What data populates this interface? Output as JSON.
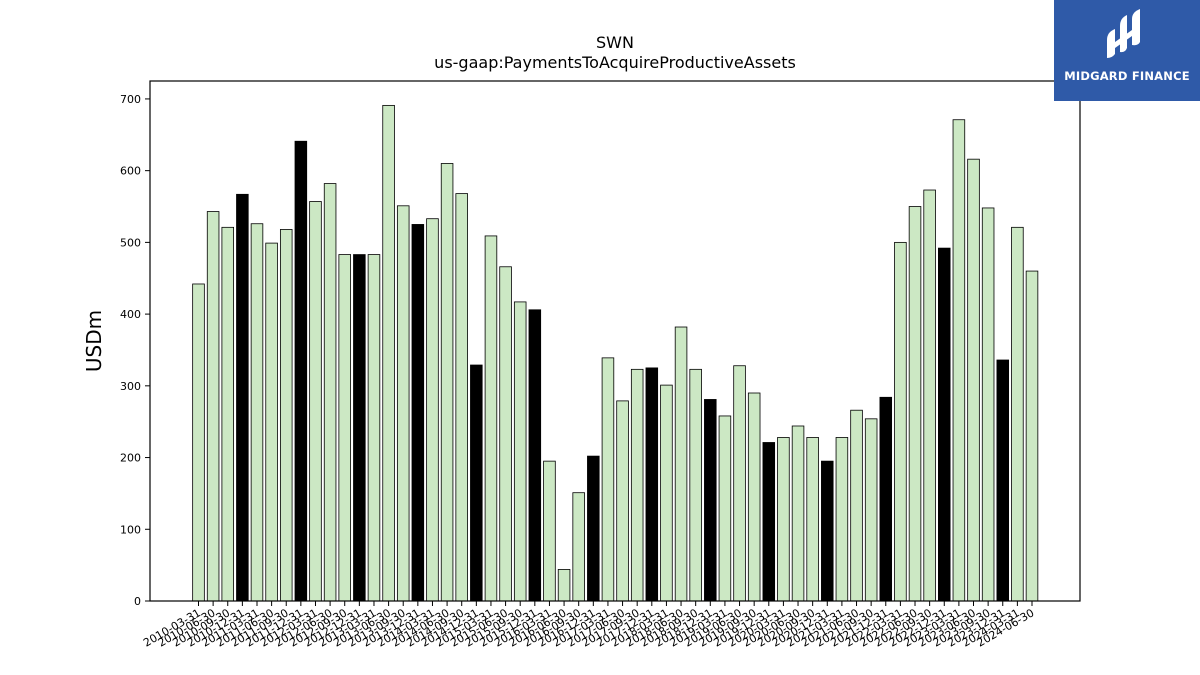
{
  "chart_data": {
    "type": "bar",
    "title": "SWN",
    "subtitle": "us-gaap:PaymentsToAcquireProductiveAssets",
    "xlabel": "",
    "ylabel": "USDm",
    "ylim": [
      0,
      725
    ],
    "yticks": [
      0,
      100,
      200,
      300,
      400,
      500,
      600,
      700
    ],
    "grid": false,
    "colors": {
      "default": "#cce8c4",
      "highlight": "#000000",
      "edge": "#000000"
    },
    "categories": [
      "2010-03-31",
      "2010-06-30",
      "2010-09-30",
      "2010-12-31",
      "2011-03-31",
      "2011-06-30",
      "2011-09-30",
      "2011-12-31",
      "2012-03-31",
      "2012-06-30",
      "2012-09-30",
      "2012-12-31",
      "2013-03-31",
      "2013-06-30",
      "2013-09-30",
      "2013-12-31",
      "2014-03-31",
      "2014-06-30",
      "2014-09-30",
      "2014-12-31",
      "2015-03-31",
      "2015-06-30",
      "2015-09-30",
      "2015-12-31",
      "2016-03-31",
      "2016-06-30",
      "2016-09-30",
      "2016-12-31",
      "2017-03-31",
      "2017-06-30",
      "2017-09-30",
      "2017-12-31",
      "2018-03-31",
      "2018-06-30",
      "2018-09-30",
      "2018-12-31",
      "2019-03-31",
      "2019-06-30",
      "2019-09-30",
      "2019-12-31",
      "2020-03-31",
      "2020-06-30",
      "2020-09-30",
      "2020-12-31",
      "2021-03-31",
      "2021-06-30",
      "2021-09-30",
      "2021-12-31",
      "2022-03-31",
      "2022-06-30",
      "2022-09-30",
      "2022-12-31",
      "2023-03-31",
      "2023-06-30",
      "2023-09-30",
      "2023-12-31",
      "2024-03-31",
      "2024-06-30"
    ],
    "values": [
      442,
      543,
      521,
      567,
      526,
      499,
      518,
      641,
      557,
      582,
      483,
      483,
      483,
      691,
      551,
      525,
      533,
      610,
      568,
      329,
      509,
      466,
      417,
      406,
      195,
      44,
      151,
      202,
      339,
      279,
      323,
      325,
      301,
      382,
      323,
      281,
      258,
      328,
      290,
      221,
      228,
      244,
      228,
      195,
      228,
      266,
      254,
      284,
      500,
      550,
      573,
      492,
      671,
      616,
      548,
      336,
      521,
      460
    ],
    "highlighted": [
      false,
      false,
      false,
      true,
      false,
      false,
      false,
      true,
      false,
      false,
      false,
      true,
      false,
      false,
      false,
      true,
      false,
      false,
      false,
      true,
      false,
      false,
      false,
      true,
      false,
      false,
      false,
      true,
      false,
      false,
      false,
      true,
      false,
      false,
      false,
      true,
      false,
      false,
      false,
      true,
      false,
      false,
      false,
      true,
      false,
      false,
      false,
      true,
      false,
      false,
      false,
      true,
      false,
      false,
      false,
      true,
      false,
      false
    ]
  },
  "logo": {
    "name": "midgard-logo-icon",
    "text": "MIDGARD FINANCE",
    "bg": "#2f5aa8"
  }
}
